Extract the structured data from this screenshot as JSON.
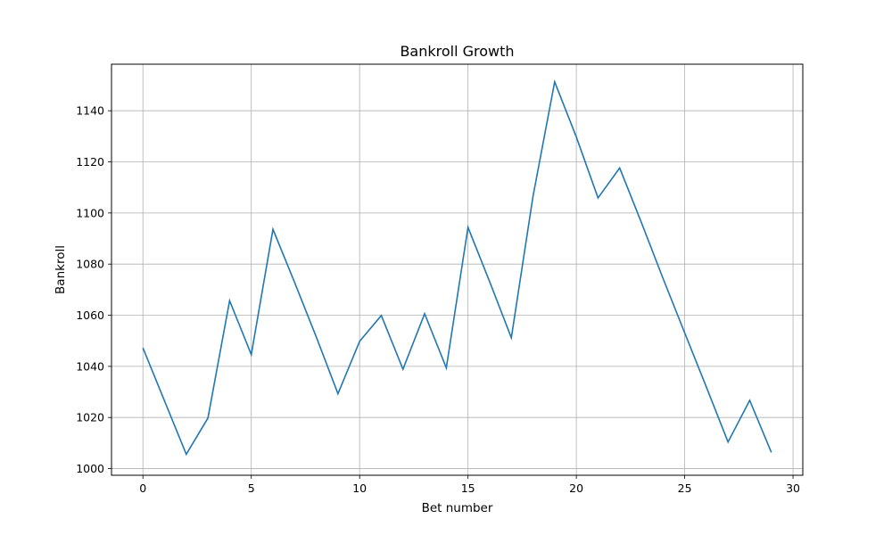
{
  "chart_data": {
    "type": "line",
    "title": "Bankroll Growth",
    "xlabel": "Bet number",
    "ylabel": "Bankroll",
    "xlim": [
      -1.45,
      30.45
    ],
    "ylim": [
      997.4,
      1158.2
    ],
    "xticks": [
      0,
      5,
      10,
      15,
      20,
      25,
      30
    ],
    "yticks": [
      1000,
      1020,
      1040,
      1060,
      1080,
      1100,
      1120,
      1140
    ],
    "grid": true,
    "line_color": "#1f77b4",
    "series": [
      {
        "x": [
          0,
          1,
          2,
          3,
          4,
          5,
          6,
          7,
          8,
          9,
          10,
          11,
          12,
          13,
          14,
          15,
          16,
          17,
          18,
          19,
          20,
          21,
          22,
          23,
          24,
          25,
          26,
          27,
          28,
          29
        ],
        "values": [
          1047.2,
          1026.4,
          1005.6,
          1019.8,
          1065.7,
          1044.6,
          1093.6,
          1072.8,
          1051.5,
          1029.3,
          1049.8,
          1059.9,
          1038.9,
          1060.6,
          1039.4,
          1094.4,
          1073.1,
          1051.2,
          1106.5,
          1151.3,
          1129.7,
          1105.9,
          1117.6,
          1096.3,
          1074.4,
          1053.1,
          1031.9,
          1010.4,
          1026.7,
          1006.3
        ]
      }
    ]
  }
}
